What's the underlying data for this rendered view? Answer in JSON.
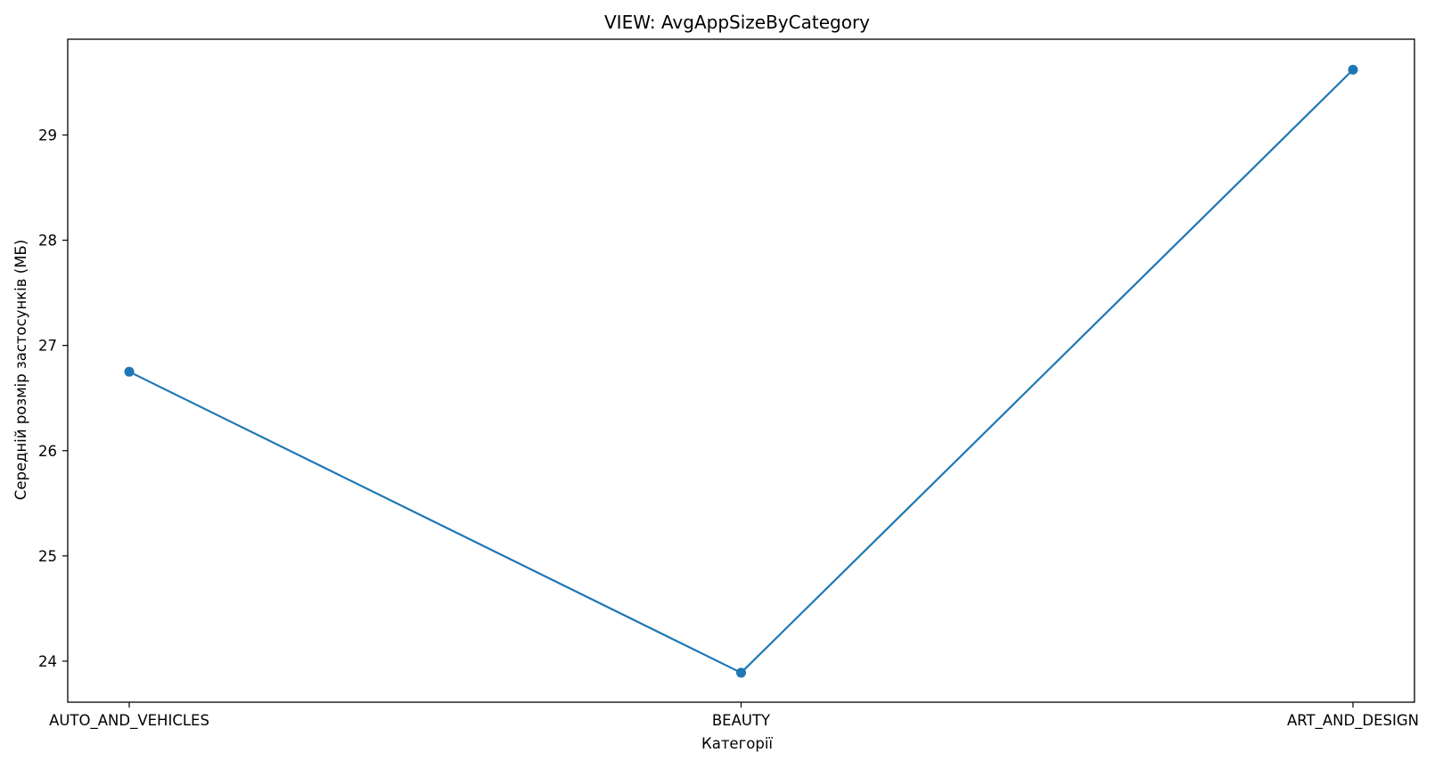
{
  "chart_data": {
    "type": "line",
    "title": "VIEW: AvgAppSizeByCategory",
    "xlabel": "Категорії",
    "ylabel": "Середній розмір застосунків (МБ)",
    "categories": [
      "AUTO_AND_VEHICLES",
      "BEAUTY",
      "ART_AND_DESIGN"
    ],
    "series": [
      {
        "values": [
          26.75,
          23.89,
          29.62
        ],
        "color": "#1f77b4",
        "marker": "circle"
      }
    ],
    "ylim": [
      23.61,
      29.91
    ],
    "yticks": [
      24,
      25,
      26,
      27,
      28,
      29
    ],
    "grid": false,
    "legend": "none"
  }
}
